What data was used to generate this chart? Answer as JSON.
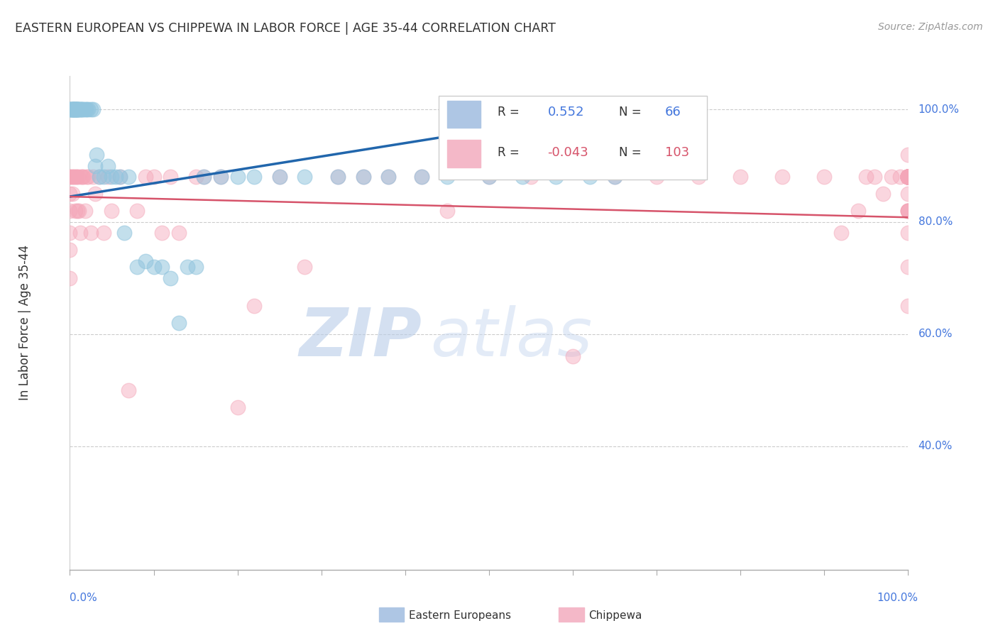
{
  "title": "EASTERN EUROPEAN VS CHIPPEWA IN LABOR FORCE | AGE 35-44 CORRELATION CHART",
  "source_text": "Source: ZipAtlas.com",
  "ylabel": "In Labor Force | Age 35-44",
  "xlim": [
    0.0,
    1.0
  ],
  "ylim": [
    0.18,
    1.06
  ],
  "ytick_values": [
    0.4,
    0.6,
    0.8,
    1.0
  ],
  "right_ytick_labels": [
    "40.0%",
    "60.0%",
    "80.0%",
    "100.0%"
  ],
  "legend_r_blue": "0.552",
  "legend_n_blue": "66",
  "legend_r_pink": "-0.043",
  "legend_n_pink": "103",
  "blue_color": "#92c5de",
  "pink_color": "#f4a6b8",
  "blue_line_color": "#2166ac",
  "pink_line_color": "#d6536a",
  "watermark_zip": "ZIP",
  "watermark_atlas": "atlas",
  "eastern_european_x": [
    0.0,
    0.0,
    0.0,
    0.002,
    0.002,
    0.003,
    0.003,
    0.004,
    0.004,
    0.005,
    0.005,
    0.005,
    0.006,
    0.006,
    0.007,
    0.007,
    0.008,
    0.008,
    0.009,
    0.009,
    0.01,
    0.01,
    0.012,
    0.012,
    0.013,
    0.015,
    0.016,
    0.018,
    0.02,
    0.022,
    0.025,
    0.028,
    0.03,
    0.032,
    0.035,
    0.04,
    0.045,
    0.05,
    0.055,
    0.06,
    0.065,
    0.07,
    0.08,
    0.09,
    0.1,
    0.11,
    0.12,
    0.13,
    0.14,
    0.15,
    0.16,
    0.18,
    0.2,
    0.22,
    0.25,
    0.28,
    0.32,
    0.35,
    0.38,
    0.42,
    0.45,
    0.5,
    0.54,
    0.58,
    0.62,
    0.65
  ],
  "eastern_european_y": [
    1.0,
    1.0,
    1.0,
    1.0,
    1.0,
    1.0,
    1.0,
    1.0,
    1.0,
    1.0,
    1.0,
    1.0,
    1.0,
    1.0,
    1.0,
    1.0,
    1.0,
    1.0,
    1.0,
    1.0,
    1.0,
    1.0,
    1.0,
    1.0,
    1.0,
    1.0,
    1.0,
    1.0,
    1.0,
    1.0,
    1.0,
    1.0,
    0.9,
    0.92,
    0.88,
    0.88,
    0.9,
    0.88,
    0.88,
    0.88,
    0.78,
    0.88,
    0.72,
    0.73,
    0.72,
    0.72,
    0.7,
    0.62,
    0.72,
    0.72,
    0.88,
    0.88,
    0.88,
    0.88,
    0.88,
    0.88,
    0.88,
    0.88,
    0.88,
    0.88,
    0.88,
    0.88,
    0.88,
    0.88,
    0.88,
    0.88
  ],
  "chippewa_x": [
    0.0,
    0.0,
    0.0,
    0.0,
    0.0,
    0.0,
    0.0,
    0.002,
    0.003,
    0.004,
    0.005,
    0.006,
    0.007,
    0.008,
    0.009,
    0.01,
    0.011,
    0.012,
    0.013,
    0.015,
    0.016,
    0.018,
    0.02,
    0.022,
    0.025,
    0.028,
    0.03,
    0.035,
    0.04,
    0.045,
    0.05,
    0.06,
    0.07,
    0.08,
    0.09,
    0.1,
    0.11,
    0.12,
    0.13,
    0.15,
    0.16,
    0.18,
    0.2,
    0.22,
    0.25,
    0.28,
    0.32,
    0.35,
    0.38,
    0.42,
    0.45,
    0.5,
    0.55,
    0.6,
    0.65,
    0.7,
    0.75,
    0.8,
    0.85,
    0.9,
    0.92,
    0.94,
    0.95,
    0.96,
    0.97,
    0.98,
    0.99,
    1.0,
    1.0,
    1.0,
    1.0,
    1.0,
    1.0,
    1.0,
    1.0,
    1.0,
    1.0,
    1.0,
    1.0,
    1.0,
    1.0,
    1.0,
    1.0,
    1.0,
    1.0,
    1.0,
    1.0,
    1.0,
    1.0,
    1.0,
    1.0,
    1.0,
    1.0,
    1.0,
    1.0,
    1.0,
    1.0,
    1.0,
    1.0,
    1.0,
    1.0,
    1.0,
    1.0
  ],
  "chippewa_y": [
    0.88,
    0.85,
    0.82,
    0.78,
    0.75,
    0.7,
    0.88,
    0.88,
    0.85,
    0.88,
    0.88,
    0.82,
    0.88,
    0.88,
    0.82,
    0.88,
    0.82,
    0.78,
    0.88,
    0.88,
    0.88,
    0.82,
    0.88,
    0.88,
    0.78,
    0.88,
    0.85,
    0.88,
    0.78,
    0.88,
    0.82,
    0.88,
    0.5,
    0.82,
    0.88,
    0.88,
    0.78,
    0.88,
    0.78,
    0.88,
    0.88,
    0.88,
    0.47,
    0.65,
    0.88,
    0.72,
    0.88,
    0.88,
    0.88,
    0.88,
    0.82,
    0.88,
    0.88,
    0.56,
    0.88,
    0.88,
    0.88,
    0.88,
    0.88,
    0.88,
    0.78,
    0.82,
    0.88,
    0.88,
    0.85,
    0.88,
    0.88,
    0.88,
    0.88,
    0.92,
    0.88,
    0.82,
    0.88,
    0.78,
    0.72,
    0.88,
    0.65,
    0.88,
    0.82,
    0.88,
    0.88,
    0.82,
    0.88,
    0.88,
    0.88,
    0.88,
    0.88,
    0.88,
    0.88,
    0.82,
    0.88,
    0.88,
    0.88,
    0.85,
    0.88,
    0.88,
    0.88,
    0.88,
    0.88,
    0.88,
    0.88,
    0.88,
    0.88
  ]
}
